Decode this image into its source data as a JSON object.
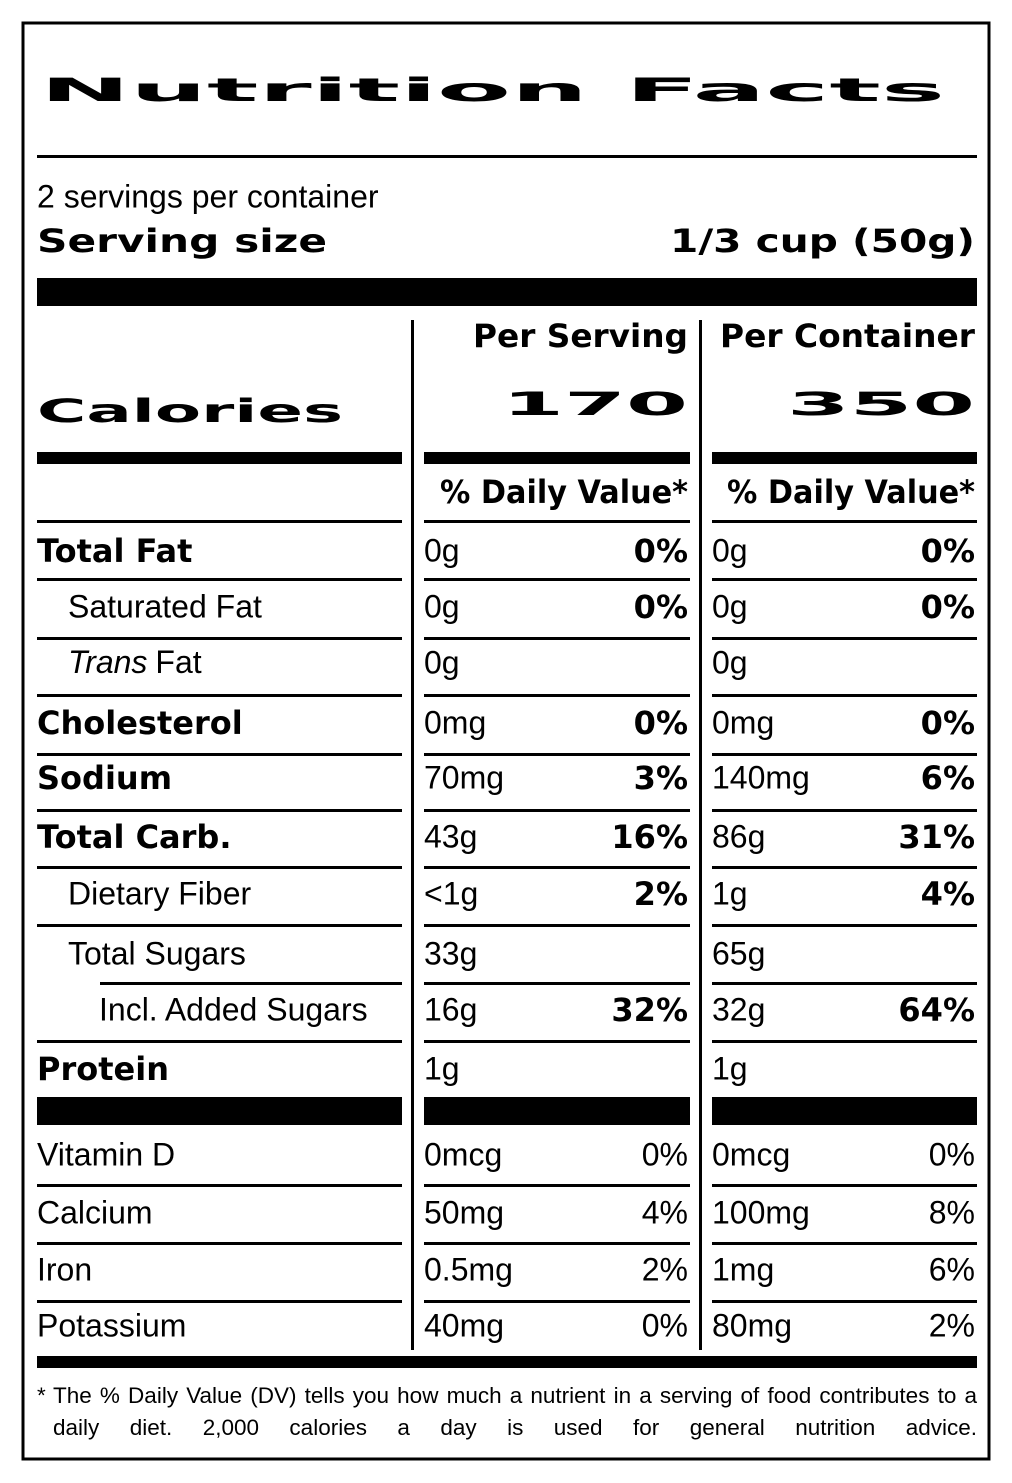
{
  "header": {
    "title": "Nutrition Facts",
    "servings": "2 servings per container",
    "serving_size_label": "Serving size",
    "serving_size": "1/3 cup (50g)"
  },
  "calories_label": "Calories",
  "columns": [
    {
      "heading": "Per Serving",
      "calories": 170,
      "dv_heading": "% Daily Value*"
    },
    {
      "heading": "Per Container",
      "calories": 350,
      "dv_heading": "% Daily Value*"
    }
  ],
  "nutrients": [
    {
      "label": "Total Fat",
      "amounts": [
        "0g",
        "0g"
      ],
      "dv": [
        "0%",
        "0%"
      ]
    },
    {
      "label": "Saturated Fat",
      "amounts": [
        "0g",
        "0g"
      ],
      "dv": [
        "0%",
        "0%"
      ]
    },
    {
      "label_italic": "Trans",
      "label": "Fat",
      "amounts": [
        "0g",
        "0g"
      ]
    },
    {
      "label": "Cholesterol",
      "amounts": [
        "0mg",
        "0mg"
      ],
      "dv": [
        "0%",
        "0%"
      ]
    },
    {
      "label": "Sodium",
      "amounts": [
        "70mg",
        "140mg"
      ],
      "dv": [
        "3%",
        "6%"
      ]
    },
    {
      "label": "Total Carb.",
      "amounts": [
        "43g",
        "86g"
      ],
      "dv": [
        "16%",
        "31%"
      ]
    },
    {
      "label": "Dietary Fiber",
      "amounts": [
        "<1g",
        "1g"
      ],
      "dv": [
        "2%",
        "4%"
      ]
    },
    {
      "label": "Total Sugars",
      "amounts": [
        "33g",
        "65g"
      ]
    },
    {
      "label": "Incl. Added Sugars",
      "amounts": [
        "16g",
        "32g"
      ],
      "dv": [
        "32%",
        "64%"
      ]
    },
    {
      "label": "Protein",
      "amounts": [
        "1g",
        "1g"
      ]
    }
  ],
  "vitamins": [
    {
      "label": "Vitamin D",
      "amounts": [
        "0mcg",
        "0mcg"
      ],
      "dv": [
        "0%",
        "0%"
      ]
    },
    {
      "label": "Calcium",
      "amounts": [
        "50mg",
        "100mg"
      ],
      "dv": [
        "4%",
        "8%"
      ]
    },
    {
      "label": "Iron",
      "amounts": [
        "0.5mg",
        "1mg"
      ],
      "dv": [
        "2%",
        "6%"
      ]
    },
    {
      "label": "Potassium",
      "amounts": [
        "40mg",
        "80mg"
      ],
      "dv": [
        "0%",
        "2%"
      ]
    }
  ],
  "footnote": {
    "mark": "*",
    "text": "The % Daily Value (DV) tells you how much a nutrient in a serving of food contributes to a daily diet. 2,000 calories a day is used for general nutrition advice."
  }
}
